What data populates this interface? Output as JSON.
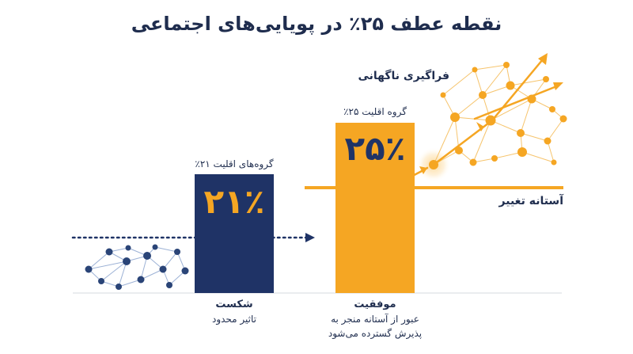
{
  "title": "نقطه عطف ۲۵٪ در پویایی‌های اجتماعی",
  "colors": {
    "navy": "#1f3366",
    "gold": "#f5a623",
    "dark_text": "#1f2d4e",
    "node_blue": "#2a4477",
    "edge_blue": "#9db2d6"
  },
  "left_bar": {
    "group_label": "گروه‌های اقلیت ۲۱٪",
    "value": "۲۱٪",
    "caption_head": "شکست",
    "caption_sub": "تاثیر محدود"
  },
  "right_bar": {
    "group_label": "گروه اقلیت ۲۵٪",
    "value": "۲۵٪",
    "caption_head": "موفقیت",
    "caption_line1": "عبور از آستانه منجر به",
    "caption_line2": "پذیرش گسترده می‌شود"
  },
  "threshold_label": "آستانه تغییر",
  "surge_label": "فراگیری ناگهانی"
}
